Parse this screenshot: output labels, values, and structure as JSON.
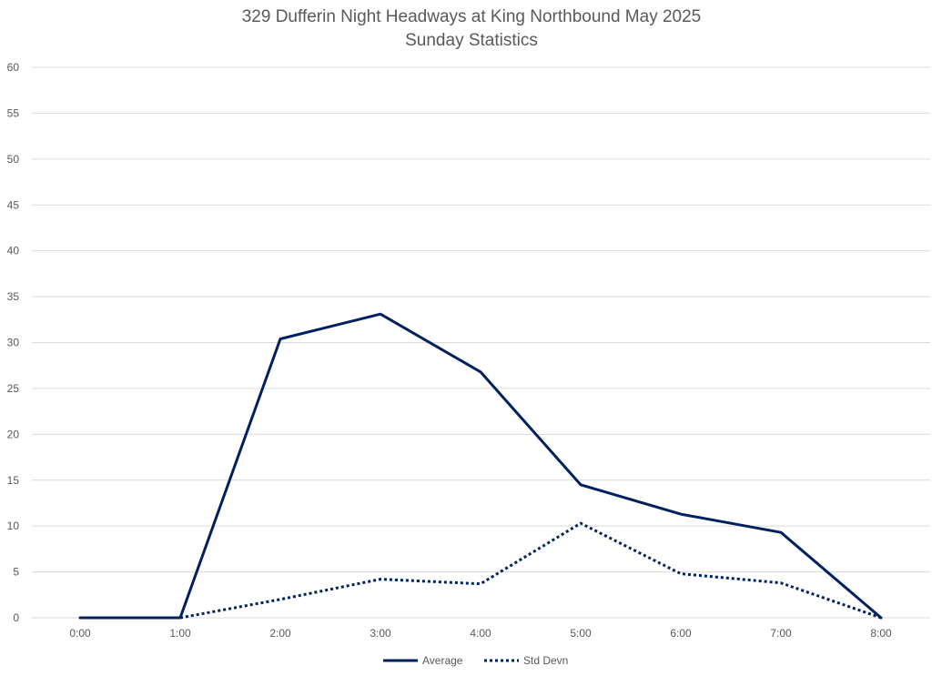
{
  "chart_data": {
    "type": "line",
    "title": "329 Dufferin Night Headways at King Northbound May 2025",
    "subtitle": "Sunday Statistics",
    "categories": [
      "0:00",
      "1:00",
      "2:00",
      "3:00",
      "4:00",
      "5:00",
      "6:00",
      "7:00",
      "8:00"
    ],
    "series": [
      {
        "name": "Average",
        "style": "solid",
        "color": "#002060",
        "values": [
          0,
          0,
          30.4,
          33.1,
          26.8,
          14.5,
          11.3,
          9.3,
          0
        ]
      },
      {
        "name": "Std Devn",
        "style": "dotted",
        "color": "#002060",
        "values": [
          null,
          0,
          2.0,
          4.2,
          3.7,
          10.3,
          4.8,
          3.8,
          0
        ]
      }
    ],
    "ylim": [
      0,
      60
    ],
    "yticks": [
      0,
      5,
      10,
      15,
      20,
      25,
      30,
      35,
      40,
      45,
      50,
      55,
      60
    ],
    "xlabel": "",
    "ylabel": "",
    "grid": "horizontal",
    "legend": "bottom"
  }
}
